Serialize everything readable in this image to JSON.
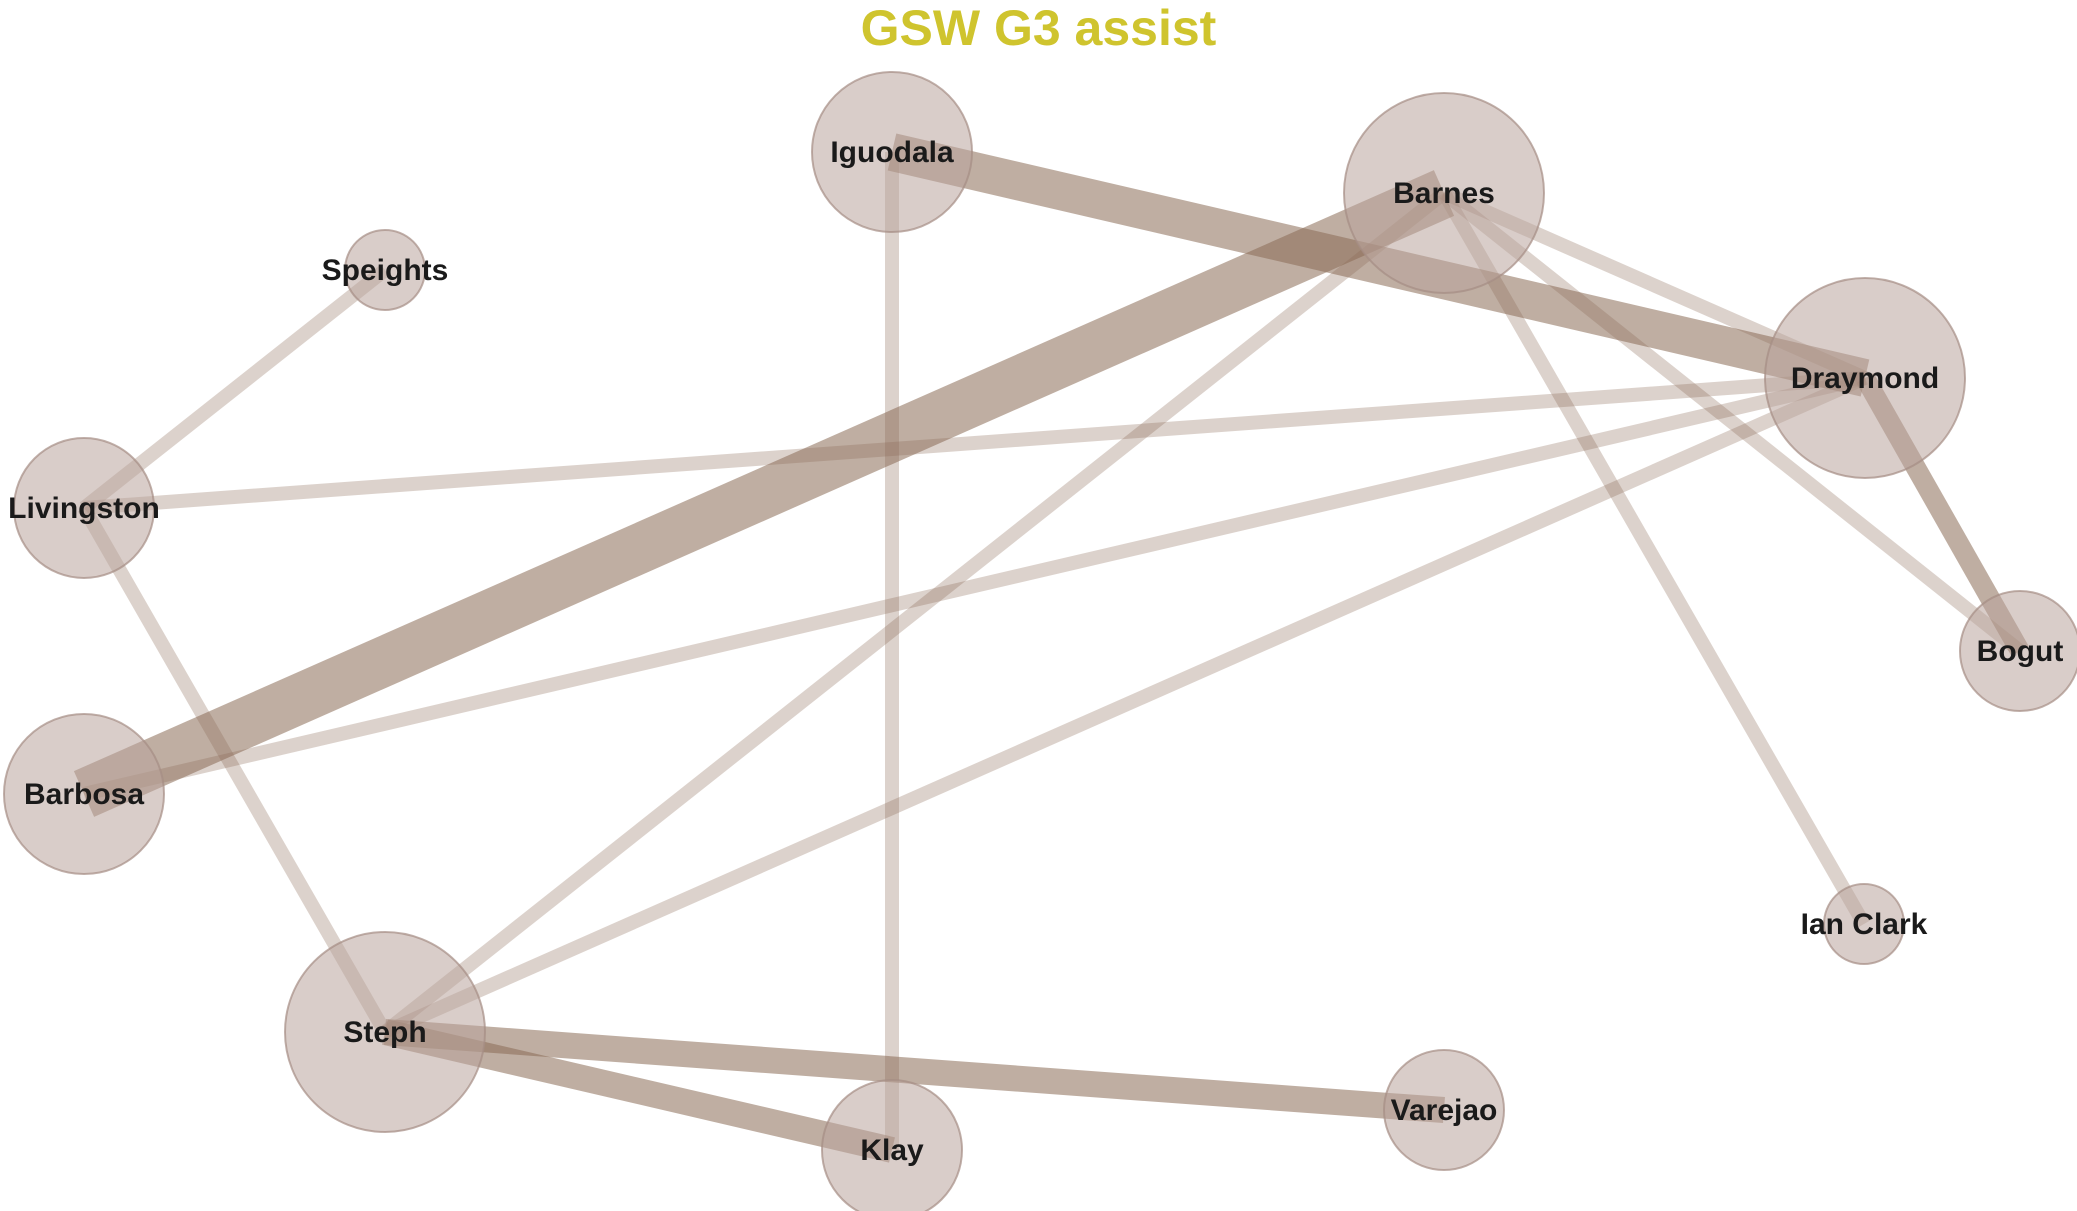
{
  "title": "GSW G3 assist",
  "colors": {
    "title": "#cfc42e",
    "node_fill": "#b9a49d",
    "node_stroke": "#a58d85",
    "edge": "#8b6b56",
    "label": "#1a1a1a"
  },
  "nodes": [
    {
      "id": "iguodala",
      "label": "Iguodala",
      "weight": 4
    },
    {
      "id": "barnes",
      "label": "Barnes",
      "weight": 5
    },
    {
      "id": "speights",
      "label": "Speights",
      "weight": 2
    },
    {
      "id": "draymond",
      "label": "Draymond",
      "weight": 5
    },
    {
      "id": "livingston",
      "label": "Livingston",
      "weight": 3.5
    },
    {
      "id": "bogut",
      "label": "Bogut",
      "weight": 3
    },
    {
      "id": "barbosa",
      "label": "Barbosa",
      "weight": 4
    },
    {
      "id": "ianclark",
      "label": "Ian Clark",
      "weight": 2
    },
    {
      "id": "steph",
      "label": "Steph",
      "weight": 5
    },
    {
      "id": "varejao",
      "label": "Varejao",
      "weight": 3
    },
    {
      "id": "klay",
      "label": "Klay",
      "weight": 3.5
    }
  ],
  "edges": [
    {
      "source": "iguodala",
      "target": "draymond",
      "weight": 3
    },
    {
      "source": "barbosa",
      "target": "barnes",
      "weight": 4
    },
    {
      "source": "steph",
      "target": "varejao",
      "weight": 2
    },
    {
      "source": "steph",
      "target": "klay",
      "weight": 2
    },
    {
      "source": "draymond",
      "target": "bogut",
      "weight": 1.5
    },
    {
      "source": "iguodala",
      "target": "klay",
      "weight": 1
    },
    {
      "source": "speights",
      "target": "livingston",
      "weight": 1
    },
    {
      "source": "livingston",
      "target": "draymond",
      "weight": 1
    },
    {
      "source": "livingston",
      "target": "steph",
      "weight": 1
    },
    {
      "source": "barbosa",
      "target": "draymond",
      "weight": 1
    },
    {
      "source": "barnes",
      "target": "steph",
      "weight": 1
    },
    {
      "source": "draymond",
      "target": "steph",
      "weight": 1
    },
    {
      "source": "barnes",
      "target": "bogut",
      "weight": 1
    },
    {
      "source": "barnes",
      "target": "draymond",
      "weight": 1
    },
    {
      "source": "barnes",
      "target": "ianclark",
      "weight": 1
    }
  ]
}
